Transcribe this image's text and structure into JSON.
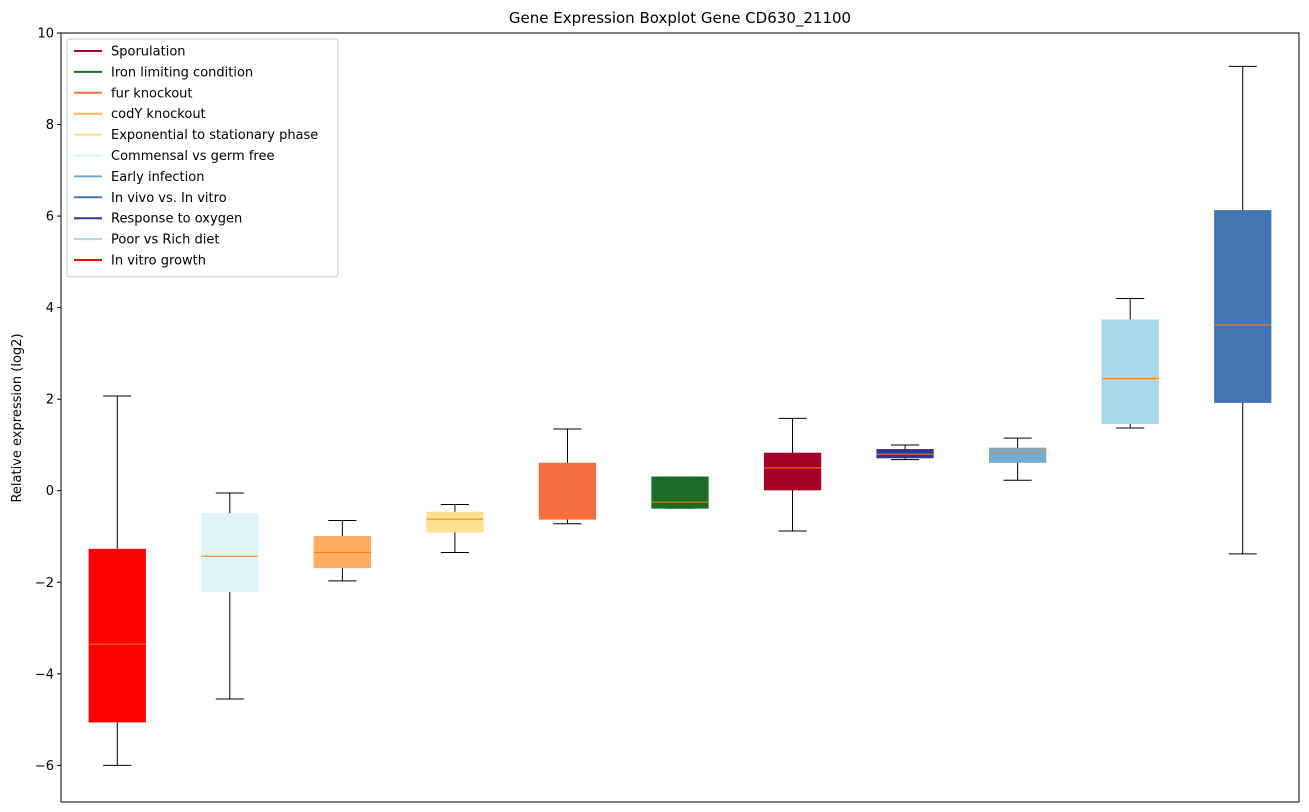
{
  "chart_data": {
    "type": "box",
    "title": "Gene Expression Boxplot Gene CD630_21100",
    "xlabel": "",
    "ylabel": "Relative expression (log2)",
    "ylim": [
      -6.8,
      10
    ],
    "yticks": [
      -6,
      -4,
      -2,
      0,
      2,
      4,
      6,
      8,
      10
    ],
    "yticks_labels": [
      "−6",
      "−4",
      "−2",
      "0",
      "2",
      "4",
      "6",
      "8",
      "10"
    ],
    "grid": false,
    "legend_position": "top-left",
    "legend": [
      {
        "label": "Sporulation",
        "color": "#a50026"
      },
      {
        "label": "Iron limiting condition",
        "color": "#1a6b24"
      },
      {
        "label": "fur knockout",
        "color": "#f46d43"
      },
      {
        "label": "codY knockout",
        "color": "#fdae61"
      },
      {
        "label": "Exponential to stationary phase",
        "color": "#fee090"
      },
      {
        "label": "Commensal vs germ free",
        "color": "#e0f3f8"
      },
      {
        "label": "Early infection",
        "color": "#74add1"
      },
      {
        "label": "In vivo vs. In vitro",
        "color": "#4575b4"
      },
      {
        "label": "Response to oxygen",
        "color": "#313695"
      },
      {
        "label": "Poor vs Rich diet",
        "color": "#a6d8e8"
      },
      {
        "label": "In vitro growth",
        "color": "#ff0000"
      }
    ],
    "median_color": "#ff7f0e",
    "boxes": [
      {
        "group": "In vitro growth",
        "color": "#ff0000",
        "whisker_low": -6.0,
        "q1": -5.05,
        "median": -3.35,
        "q3": -1.28,
        "whisker_high": 2.07
      },
      {
        "group": "Commensal vs germ free",
        "color": "#e0f3f8",
        "whisker_low": -4.55,
        "q1": -2.2,
        "median": -1.43,
        "q3": -0.5,
        "whisker_high": -0.05
      },
      {
        "group": "codY knockout",
        "color": "#fdae61",
        "whisker_low": -1.97,
        "q1": -1.68,
        "median": -1.35,
        "q3": -1.0,
        "whisker_high": -0.65
      },
      {
        "group": "Exponential to stationary phase",
        "color": "#fee090",
        "whisker_low": -1.35,
        "q1": -0.9,
        "median": -0.62,
        "q3": -0.47,
        "whisker_high": -0.3
      },
      {
        "group": "fur knockout",
        "color": "#f46d43",
        "whisker_low": -0.72,
        "q1": -0.62,
        "median": -0.58,
        "q3": 0.6,
        "whisker_high": 1.35
      },
      {
        "group": "Iron limiting condition",
        "color": "#1a6b24",
        "whisker_low": -0.38,
        "q1": -0.38,
        "median": -0.25,
        "q3": 0.3,
        "whisker_high": 0.3
      },
      {
        "group": "Sporulation",
        "color": "#a50026",
        "whisker_low": -0.88,
        "q1": 0.02,
        "median": 0.5,
        "q3": 0.82,
        "whisker_high": 1.58
      },
      {
        "group": "Response to oxygen",
        "color": "#313695",
        "whisker_low": 0.68,
        "q1": 0.72,
        "median": 0.8,
        "q3": 0.9,
        "whisker_high": 1.0
      },
      {
        "group": "Early infection",
        "color": "#74add1",
        "whisker_low": 0.23,
        "q1": 0.62,
        "median": 0.82,
        "q3": 0.93,
        "whisker_high": 1.15
      },
      {
        "group": "Poor vs Rich diet",
        "color": "#a6d8e8",
        "whisker_low": 1.37,
        "q1": 1.47,
        "median": 2.45,
        "q3": 3.73,
        "whisker_high": 4.2
      },
      {
        "group": "In vivo vs. In vitro",
        "color": "#4575b4",
        "whisker_low": -1.38,
        "q1": 1.93,
        "median": 3.62,
        "q3": 6.12,
        "whisker_high": 9.27
      }
    ]
  }
}
